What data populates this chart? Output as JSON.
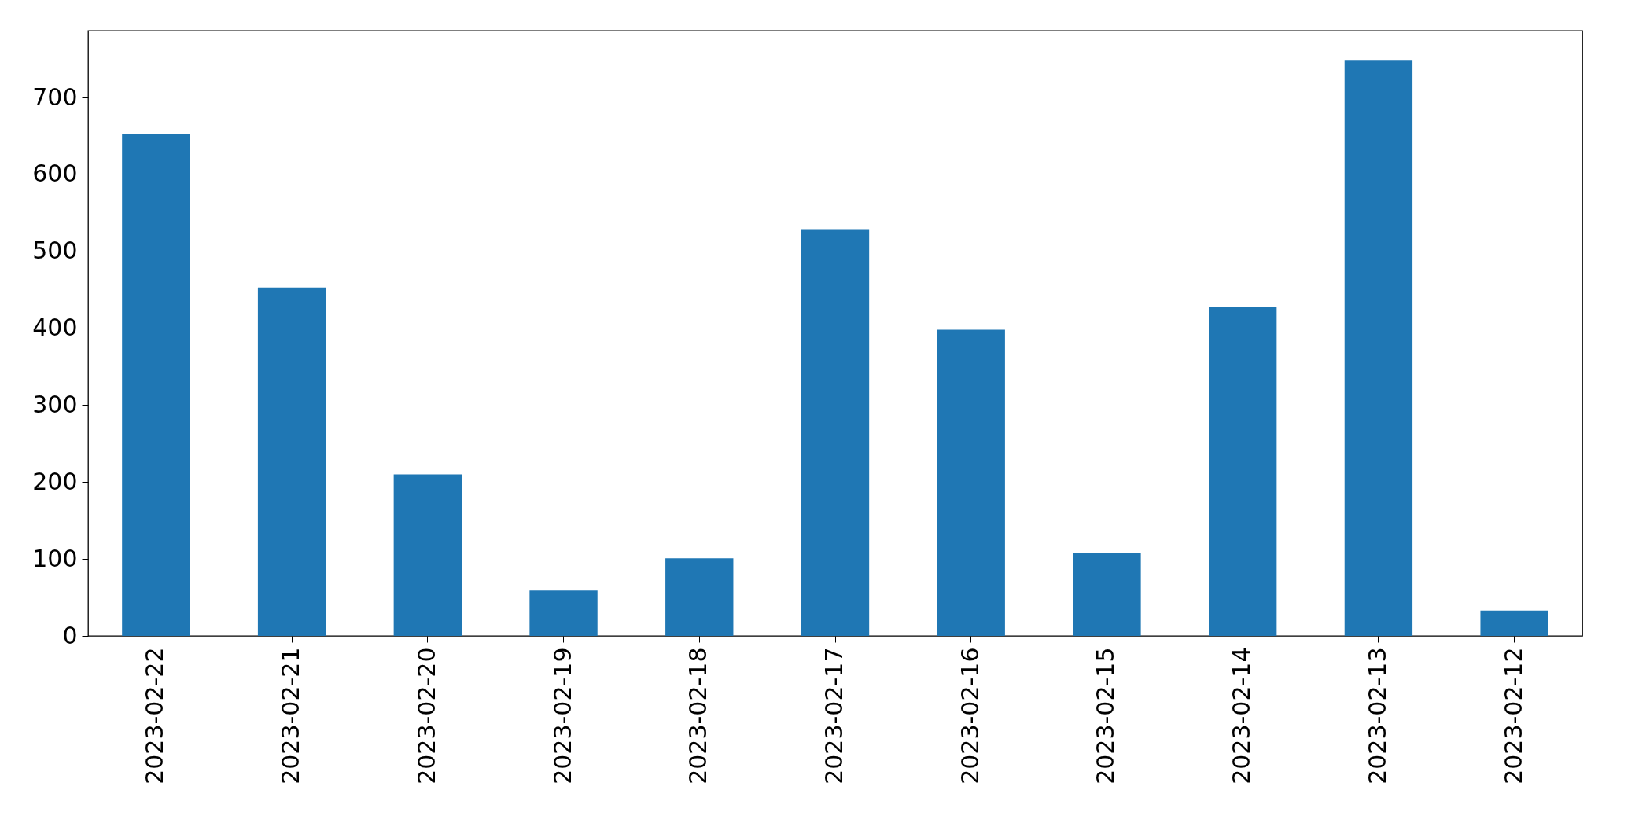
{
  "chart_data": {
    "type": "bar",
    "categories": [
      "2023-02-22",
      "2023-02-21",
      "2023-02-20",
      "2023-02-19",
      "2023-02-18",
      "2023-02-17",
      "2023-02-16",
      "2023-02-15",
      "2023-02-14",
      "2023-02-13",
      "2023-02-12"
    ],
    "values": [
      652,
      453,
      210,
      59,
      101,
      529,
      398,
      108,
      428,
      749,
      33
    ],
    "color": "#1f77b4",
    "ylim": [
      0,
      787
    ],
    "yticks": [
      0,
      100,
      200,
      300,
      400,
      500,
      600,
      700
    ],
    "grid": false
  }
}
